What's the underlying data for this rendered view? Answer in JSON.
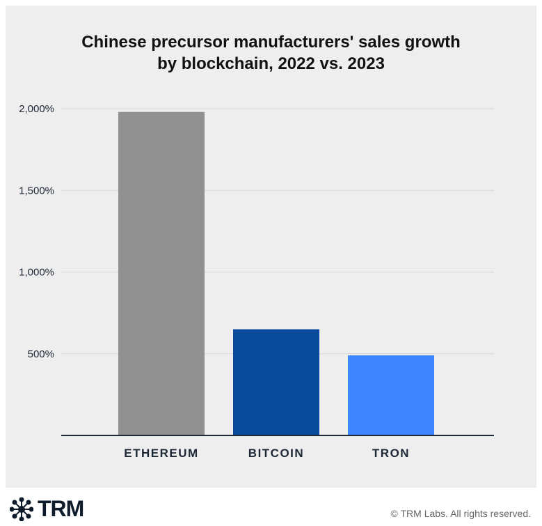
{
  "chart_data": {
    "type": "bar",
    "title": "Chinese precursor manufacturers' sales growth by blockchain, 2022 vs. 2023",
    "title_lines": [
      "Chinese precursor manufacturers' sales growth",
      "by blockchain, 2022 vs. 2023"
    ],
    "categories": [
      "ETHEREUM",
      "BITCOIN",
      "TRON"
    ],
    "values": [
      1980,
      650,
      490
    ],
    "colors": [
      "#919191",
      "#0a4a9c",
      "#3e86ff"
    ],
    "ylim": [
      0,
      2000
    ],
    "yticks": [
      500,
      1000,
      1500,
      2000
    ],
    "ytick_labels": [
      "500%",
      "1,000%",
      "1,500%",
      "2,000%"
    ],
    "grid": true,
    "xlabel": "",
    "ylabel": ""
  },
  "footer": {
    "logo": "TRM",
    "copyright": "© TRM Labs. All rights reserved."
  }
}
